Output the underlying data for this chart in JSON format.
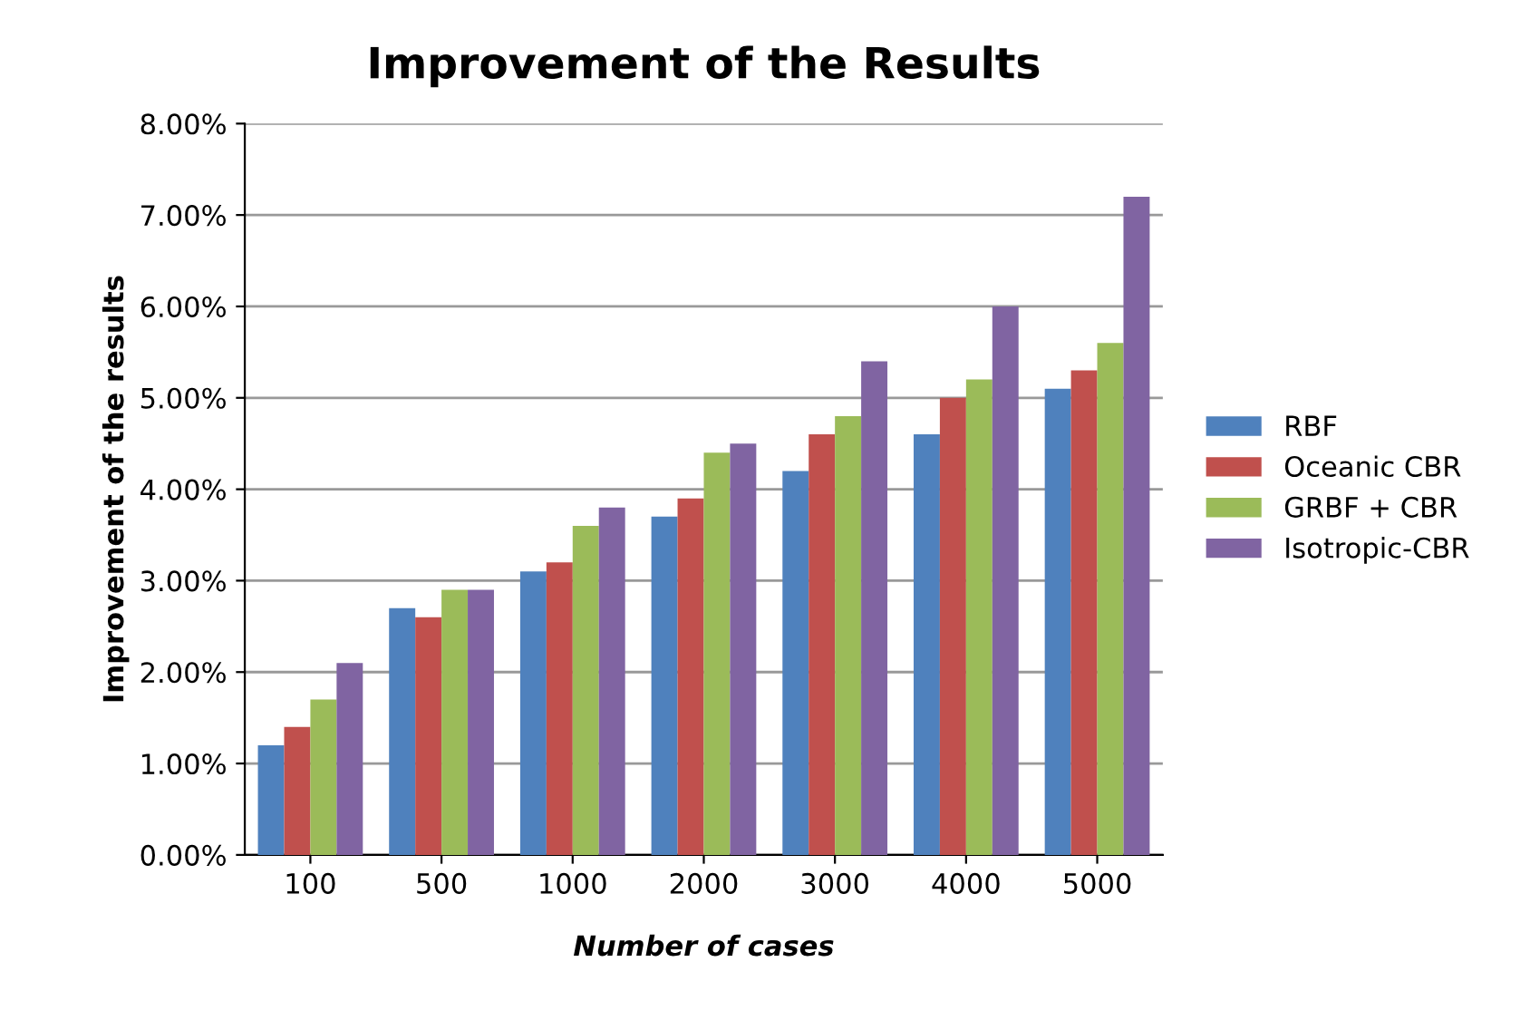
{
  "chart_data": {
    "type": "bar",
    "title": "Improvement of the Results",
    "xlabel": "Number of cases",
    "ylabel": "Improvement of the results",
    "categories": [
      "100",
      "500",
      "1000",
      "2000",
      "3000",
      "4000",
      "5000"
    ],
    "series": [
      {
        "name": "RBF",
        "color": "#4f81bd",
        "values": [
          1.2,
          2.7,
          3.1,
          3.7,
          4.2,
          4.6,
          5.1
        ]
      },
      {
        "name": "Oceanic CBR",
        "color": "#c0504d",
        "values": [
          1.4,
          2.6,
          3.2,
          3.9,
          4.6,
          5.0,
          5.3
        ]
      },
      {
        "name": "GRBF + CBR",
        "color": "#9bbb59",
        "values": [
          1.7,
          2.9,
          3.6,
          4.4,
          4.8,
          5.2,
          5.6
        ]
      },
      {
        "name": "Isotropic-CBR",
        "color": "#8064a2",
        "values": [
          2.1,
          2.9,
          3.8,
          4.5,
          5.4,
          6.0,
          7.2
        ]
      }
    ],
    "ylim": [
      0,
      8
    ],
    "yticks": [
      {
        "value": 0,
        "label": "0.00%"
      },
      {
        "value": 1,
        "label": "1.00%"
      },
      {
        "value": 2,
        "label": "2.00%"
      },
      {
        "value": 3,
        "label": "3.00%"
      },
      {
        "value": 4,
        "label": "4.00%"
      },
      {
        "value": 5,
        "label": "5.00%"
      },
      {
        "value": 6,
        "label": "6.00%"
      },
      {
        "value": 7,
        "label": "7.00%"
      },
      {
        "value": 8,
        "label": "8.00%"
      }
    ],
    "grid": "y",
    "legend": "right"
  }
}
